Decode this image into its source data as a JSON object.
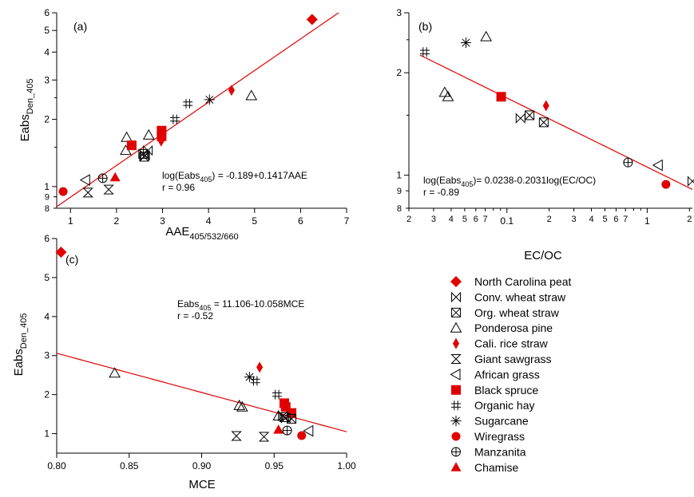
{
  "colors": {
    "fit_line": "#e00000",
    "filled_marker": "#e00000",
    "axis": "#000000",
    "open_marker": "#000000"
  },
  "legend": {
    "placement": "bottom-right",
    "entries": [
      {
        "name": "North Carolina peat",
        "marker": "diamond-filled"
      },
      {
        "name": "Conv. wheat straw",
        "marker": "bowtie"
      },
      {
        "name": "Org. wheat straw",
        "marker": "boxed-x"
      },
      {
        "name": "Ponderosa pine",
        "marker": "triangle-open"
      },
      {
        "name": "Cali. rice straw",
        "marker": "thin-diamond-filled"
      },
      {
        "name": "Giant sawgrass",
        "marker": "hourglass"
      },
      {
        "name": "African grass",
        "marker": "triangle-left-open"
      },
      {
        "name": "Black spruce",
        "marker": "square-filled"
      },
      {
        "name": "Organic hay",
        "marker": "hash"
      },
      {
        "name": "Sugarcane",
        "marker": "asterisk"
      },
      {
        "name": "Wiregrass",
        "marker": "circle-filled"
      },
      {
        "name": "Manzanita",
        "marker": "circle-plus"
      },
      {
        "name": "Chamise",
        "marker": "triangle-filled"
      }
    ]
  },
  "chart_data": [
    {
      "id": "a",
      "type": "scatter",
      "tag": "(a)",
      "xlabel": {
        "main": "AAE",
        "sub": "405/532/660"
      },
      "ylabel": {
        "main": "Eabs",
        "sub": "Den_405"
      },
      "xscale": "linear",
      "yscale": "log",
      "xlim": [
        0.7,
        7.0
      ],
      "ylim": [
        0.8,
        6.0
      ],
      "xticks": [
        1,
        2,
        3,
        4,
        5,
        6,
        7
      ],
      "xtick_labels": [
        "1",
        "2",
        "3",
        "4",
        "5",
        "6",
        "7"
      ],
      "yticks_major": [
        1,
        2,
        3,
        4,
        5,
        6
      ],
      "ytick_labels_major": [
        "1",
        "2",
        "3",
        "4",
        "5",
        "6"
      ],
      "yticks_minor": [
        0.8,
        0.9
      ],
      "ytick_labels_minor": [
        "8",
        "9"
      ],
      "annotation": {
        "line1_pre": "log(Eabs",
        "line1_sub": "405",
        "line1_post": ") = -0.189+0.1417AAE",
        "line2": "r = 0.96"
      },
      "fit": {
        "kind": "log10y_linear_x",
        "intercept": -0.189,
        "slope": 0.1417
      },
      "points": [
        {
          "series": "North Carolina peat",
          "x": 6.25,
          "y": 5.6
        },
        {
          "series": "Cali. rice straw",
          "x": 4.5,
          "y": 2.7
        },
        {
          "series": "Cali. rice straw",
          "x": 2.97,
          "y": 1.6
        },
        {
          "series": "Ponderosa pine",
          "x": 4.93,
          "y": 2.55
        },
        {
          "series": "Ponderosa pine",
          "x": 2.7,
          "y": 1.7
        },
        {
          "series": "Ponderosa pine",
          "x": 2.22,
          "y": 1.66
        },
        {
          "series": "Ponderosa pine",
          "x": 2.2,
          "y": 1.45
        },
        {
          "series": "Sugarcane",
          "x": 4.02,
          "y": 2.45
        },
        {
          "series": "Organic hay",
          "x": 3.55,
          "y": 2.35
        },
        {
          "series": "Organic hay",
          "x": 3.27,
          "y": 2.0
        },
        {
          "series": "Black spruce",
          "x": 2.98,
          "y": 1.78
        },
        {
          "series": "Black spruce",
          "x": 2.98,
          "y": 1.68
        },
        {
          "series": "Black spruce",
          "x": 2.33,
          "y": 1.53
        },
        {
          "series": "Conv. wheat straw",
          "x": 2.68,
          "y": 1.45
        },
        {
          "series": "Conv. wheat straw",
          "x": 2.62,
          "y": 1.38
        },
        {
          "series": "Org. wheat straw",
          "x": 2.58,
          "y": 1.4
        },
        {
          "series": "Org. wheat straw",
          "x": 2.6,
          "y": 1.36
        },
        {
          "series": "African grass",
          "x": 1.33,
          "y": 1.07
        },
        {
          "series": "Manzanita",
          "x": 1.7,
          "y": 1.09
        },
        {
          "series": "Chamise",
          "x": 1.97,
          "y": 1.1
        },
        {
          "series": "Wiregrass",
          "x": 0.84,
          "y": 0.95
        },
        {
          "series": "Giant sawgrass",
          "x": 1.38,
          "y": 0.94
        },
        {
          "series": "Giant sawgrass",
          "x": 1.83,
          "y": 0.97
        }
      ]
    },
    {
      "id": "b",
      "type": "scatter",
      "tag": "(b)",
      "xlabel": {
        "main": "EC/OC",
        "sub": ""
      },
      "ylabel": {
        "main": "",
        "sub": ""
      },
      "xscale": "log",
      "yscale": "log",
      "xlim": [
        0.02,
        2.1
      ],
      "ylim": [
        0.8,
        3.0
      ],
      "xticks_major": [
        0.1,
        1
      ],
      "xtick_labels_major": [
        "0.1",
        "1"
      ],
      "xticks_minor": [
        0.02,
        0.03,
        0.04,
        0.05,
        0.06,
        0.07,
        0.2,
        0.3,
        0.4,
        0.5,
        0.6,
        0.7,
        2
      ],
      "xtick_labels_minor": [
        "2",
        "3",
        "4",
        "5",
        "6",
        "7",
        "2",
        "3",
        "4",
        "5",
        "6",
        "7",
        "2"
      ],
      "yticks_major": [
        1,
        2,
        3
      ],
      "ytick_labels_major": [
        "1",
        "2",
        "3"
      ],
      "yticks_minor": [
        0.8,
        0.9
      ],
      "ytick_labels_minor": [
        "8",
        "9"
      ],
      "annotation": {
        "line1_pre": "log(Eabs",
        "line1_sub": "405",
        "line1_post": ")=  0.0238-0.2031log(EC/OC)",
        "line2": "r = -0.89"
      },
      "fit": {
        "kind": "log10y_log10x",
        "intercept": 0.0238,
        "slope": -0.2031
      },
      "fit_xrange": [
        0.024,
        2.1
      ],
      "points": [
        {
          "series": "Organic hay",
          "x": 0.026,
          "y": 2.3
        },
        {
          "series": "Sugarcane",
          "x": 0.051,
          "y": 2.45
        },
        {
          "series": "Ponderosa pine",
          "x": 0.071,
          "y": 2.55
        },
        {
          "series": "Ponderosa pine",
          "x": 0.036,
          "y": 1.75
        },
        {
          "series": "Ponderosa pine",
          "x": 0.038,
          "y": 1.7
        },
        {
          "series": "Black spruce",
          "x": 0.091,
          "y": 1.7
        },
        {
          "series": "Cali. rice straw",
          "x": 0.19,
          "y": 1.6
        },
        {
          "series": "Conv. wheat straw",
          "x": 0.125,
          "y": 1.47
        },
        {
          "series": "Org. wheat straw",
          "x": 0.145,
          "y": 1.5
        },
        {
          "series": "Org. wheat straw",
          "x": 0.183,
          "y": 1.43
        },
        {
          "series": "Manzanita",
          "x": 0.73,
          "y": 1.09
        },
        {
          "series": "African grass",
          "x": 1.2,
          "y": 1.07
        },
        {
          "series": "Wiregrass",
          "x": 1.36,
          "y": 0.94
        },
        {
          "series": "Conv. wheat straw",
          "x": 2.1,
          "y": 0.96
        }
      ]
    },
    {
      "id": "c",
      "type": "scatter",
      "tag": "(c)",
      "xlabel": {
        "main": "MCE",
        "sub": ""
      },
      "ylabel": {
        "main": "Eabs",
        "sub": "Den_405"
      },
      "xscale": "linear",
      "yscale": "linear",
      "xlim": [
        0.8,
        1.0
      ],
      "ylim": [
        0.5,
        6.0
      ],
      "xticks": [
        0.8,
        0.85,
        0.9,
        0.95,
        1.0
      ],
      "xtick_labels": [
        "0.80",
        "0.85",
        "0.90",
        "0.95",
        "1.00"
      ],
      "yticks": [
        1,
        2,
        3,
        4,
        5,
        6
      ],
      "ytick_labels": [
        "1",
        "2",
        "3",
        "4",
        "5",
        "6"
      ],
      "annotation": {
        "line1_pre": "Eabs",
        "line1_sub": "405",
        "line1_post": " = 11.106-10.058MCE",
        "line2": "r = -0.52"
      },
      "fit": {
        "kind": "linear",
        "intercept": 11.106,
        "slope": -10.058
      },
      "points": [
        {
          "series": "North Carolina peat",
          "x": 0.803,
          "y": 5.65
        },
        {
          "series": "Ponderosa pine",
          "x": 0.84,
          "y": 2.55
        },
        {
          "series": "Ponderosa pine",
          "x": 0.926,
          "y": 1.72
        },
        {
          "series": "Ponderosa pine",
          "x": 0.928,
          "y": 1.68
        },
        {
          "series": "Ponderosa pine",
          "x": 0.953,
          "y": 1.45
        },
        {
          "series": "Cali. rice straw",
          "x": 0.94,
          "y": 2.7
        },
        {
          "series": "Sugarcane",
          "x": 0.933,
          "y": 2.45
        },
        {
          "series": "Organic hay",
          "x": 0.937,
          "y": 2.35
        },
        {
          "series": "Organic hay",
          "x": 0.952,
          "y": 2.0
        },
        {
          "series": "Black spruce",
          "x": 0.957,
          "y": 1.78
        },
        {
          "series": "Black spruce",
          "x": 0.958,
          "y": 1.68
        },
        {
          "series": "Black spruce",
          "x": 0.962,
          "y": 1.53
        },
        {
          "series": "Conv. wheat straw",
          "x": 0.956,
          "y": 1.45
        },
        {
          "series": "Conv. wheat straw",
          "x": 0.958,
          "y": 1.4
        },
        {
          "series": "Org. wheat straw",
          "x": 0.957,
          "y": 1.42
        },
        {
          "series": "Org. wheat straw",
          "x": 0.962,
          "y": 1.38
        },
        {
          "series": "Giant sawgrass",
          "x": 0.924,
          "y": 0.94
        },
        {
          "series": "Giant sawgrass",
          "x": 0.943,
          "y": 0.92
        },
        {
          "series": "Chamise",
          "x": 0.953,
          "y": 1.1
        },
        {
          "series": "Manzanita",
          "x": 0.959,
          "y": 1.08
        },
        {
          "series": "African grass",
          "x": 0.974,
          "y": 1.07
        },
        {
          "series": "Wiregrass",
          "x": 0.969,
          "y": 0.95
        }
      ]
    }
  ]
}
